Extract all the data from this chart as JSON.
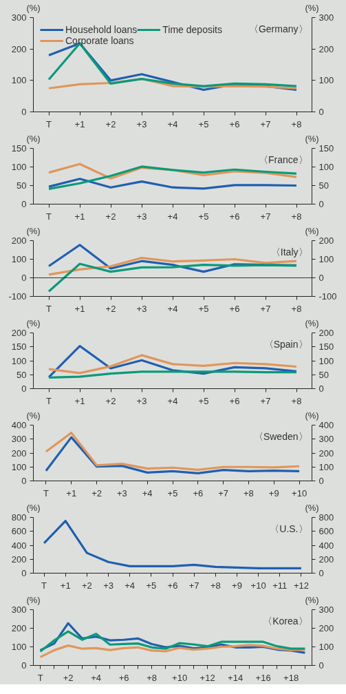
{
  "chart_data": [
    {
      "type": "line",
      "legend": "top left",
      "annotations": [
        "〈Germany〉"
      ],
      "ylabel": "(%)",
      "y2label": "(%)",
      "categories": [
        "T",
        "+1",
        "+2",
        "+3",
        "+4",
        "+5",
        "+6",
        "+7",
        "+8"
      ],
      "ylim": [
        0,
        300
      ],
      "yticks": [
        0,
        100,
        200,
        300
      ],
      "y2lim": [
        0,
        300
      ],
      "y2ticks": [
        0,
        100,
        200,
        300
      ],
      "series": [
        {
          "name": "Household loans",
          "color": "#1f5fb0",
          "values": [
            180,
            218,
            100,
            120,
            95,
            70,
            88,
            82,
            70
          ]
        },
        {
          "name": "Corporate loans",
          "color": "#e0965a",
          "values": [
            75,
            88,
            92,
            105,
            82,
            80,
            82,
            80,
            75
          ]
        },
        {
          "name": "Time deposits",
          "color": "#0a9a7a",
          "values": [
            103,
            218,
            90,
            105,
            90,
            82,
            90,
            88,
            82
          ]
        }
      ]
    },
    {
      "type": "line",
      "annotations": [
        "〈France〉"
      ],
      "ylabel": "(%)",
      "y2label": "(%)",
      "categories": [
        "T",
        "+1",
        "+2",
        "+3",
        "+4",
        "+5",
        "+6",
        "+7",
        "+8"
      ],
      "ylim": [
        0,
        150
      ],
      "yticks": [
        0,
        50,
        100,
        150
      ],
      "y2lim": [
        0,
        150
      ],
      "y2ticks": [
        0,
        50,
        100,
        150
      ],
      "series": [
        {
          "color": "#1f5fb0",
          "values": [
            47,
            68,
            45,
            61,
            45,
            42,
            51,
            51,
            50
          ]
        },
        {
          "color": "#e0965a",
          "values": [
            85,
            108,
            69,
            98,
            92,
            78,
            88,
            84,
            73
          ]
        },
        {
          "color": "#0a9a7a",
          "values": [
            41,
            56,
            76,
            101,
            92,
            85,
            93,
            87,
            82
          ]
        }
      ]
    },
    {
      "type": "line",
      "annotations": [
        "〈Italy〉"
      ],
      "ylabel": "(%)",
      "y2label": "(%)",
      "categories": [
        "T",
        "+1",
        "+2",
        "+3",
        "+4",
        "+5",
        "+6",
        "+7",
        "+8"
      ],
      "ylim": [
        -100,
        200
      ],
      "yticks": [
        -100,
        0,
        100,
        200
      ],
      "y2lim": [
        -100,
        200
      ],
      "y2ticks": [
        -100,
        0,
        100,
        200
      ],
      "ref_lines": [
        {
          "axis": "y",
          "value": 0,
          "color": "#333333"
        }
      ],
      "series": [
        {
          "color": "#1f5fb0",
          "values": [
            63,
            177,
            50,
            90,
            70,
            33,
            73,
            70,
            67
          ]
        },
        {
          "color": "#e0965a",
          "values": [
            17,
            45,
            62,
            107,
            88,
            93,
            100,
            80,
            90
          ]
        },
        {
          "color": "#0a9a7a",
          "values": [
            -73,
            75,
            33,
            56,
            57,
            70,
            65,
            68,
            65
          ]
        }
      ]
    },
    {
      "type": "line",
      "annotations": [
        "〈Spain〉"
      ],
      "ylabel": "(%)",
      "y2label": "(%)",
      "categories": [
        "T",
        "+1",
        "+2",
        "+3",
        "+4",
        "+5",
        "+6",
        "+7",
        "+8"
      ],
      "ylim": [
        0,
        200
      ],
      "yticks": [
        0,
        50,
        100,
        150,
        200
      ],
      "y2lim": [
        0,
        200
      ],
      "y2ticks": [
        0,
        50,
        100,
        150,
        200
      ],
      "series": [
        {
          "color": "#1f5fb0",
          "values": [
            41,
            153,
            73,
            102,
            66,
            54,
            77,
            73,
            62
          ]
        },
        {
          "color": "#e0965a",
          "values": [
            70,
            56,
            80,
            120,
            88,
            82,
            92,
            88,
            79
          ]
        },
        {
          "color": "#0a9a7a",
          "values": [
            40,
            43,
            54,
            61,
            61,
            61,
            61,
            59,
            59
          ]
        }
      ]
    },
    {
      "type": "line",
      "annotations": [
        "〈Sweden〉"
      ],
      "ylabel": "(%)",
      "y2label": "(%)",
      "categories": [
        "T",
        "+1",
        "+2",
        "+3",
        "+4",
        "+5",
        "+6",
        "+7",
        "+8",
        "+9",
        "+10"
      ],
      "ylim": [
        0,
        400
      ],
      "yticks": [
        0,
        100,
        200,
        300,
        400
      ],
      "y2lim": [
        0,
        400
      ],
      "y2ticks": [
        0,
        100,
        200,
        300,
        400
      ],
      "series": [
        {
          "color": "#1f5fb0",
          "values": [
            73,
            313,
            103,
            108,
            60,
            70,
            55,
            78,
            70,
            73,
            70
          ]
        },
        {
          "color": "#e0965a",
          "values": [
            210,
            345,
            112,
            123,
            88,
            95,
            80,
            100,
            100,
            97,
            105
          ]
        }
      ]
    },
    {
      "type": "line",
      "annotations": [
        "〈U.S.〉"
      ],
      "ylabel": "(%)",
      "y2label": "(%)",
      "categories": [
        "T",
        "+1",
        "+2",
        "+3",
        "+4",
        "+5",
        "+6",
        "+7",
        "+8",
        "+9",
        "+10",
        "+11",
        "+12"
      ],
      "ylim": [
        0,
        800
      ],
      "yticks": [
        0,
        200,
        400,
        600,
        800
      ],
      "y2lim": [
        0,
        800
      ],
      "y2ticks": [
        0,
        200,
        400,
        600,
        800
      ],
      "series": [
        {
          "color": "#1f5fb0",
          "values": [
            430,
            750,
            290,
            160,
            100,
            100,
            100,
            120,
            90,
            80,
            70,
            70,
            70
          ]
        }
      ]
    },
    {
      "type": "line",
      "annotations": [
        "〈Korea〉"
      ],
      "ylabel": "(%)",
      "y2label": "(%)",
      "categories": [
        "T",
        null,
        "+2",
        null,
        "+4",
        null,
        "+6",
        null,
        "+8",
        null,
        "+10",
        null,
        "+12",
        null,
        "+14",
        null,
        "+16",
        null,
        "+18",
        null
      ],
      "ylim": [
        0,
        300
      ],
      "yticks": [
        0,
        100,
        200,
        300
      ],
      "y2lim": [
        0,
        300
      ],
      "y2ticks": [
        0,
        100,
        200,
        300
      ],
      "series": [
        {
          "color": "#1f5fb0",
          "values": [
            82,
            118,
            227,
            145,
            155,
            135,
            138,
            145,
            115,
            98,
            105,
            92,
            97,
            113,
            97,
            97,
            100,
            85,
            80,
            68
          ]
        },
        {
          "color": "#e0965a",
          "values": [
            45,
            82,
            107,
            90,
            93,
            83,
            93,
            97,
            80,
            76,
            95,
            85,
            90,
            100,
            103,
            110,
            105,
            90,
            83,
            85
          ]
        },
        {
          "color": "#0a9a7a",
          "values": [
            75,
            135,
            183,
            138,
            170,
            112,
            115,
            118,
            97,
            90,
            120,
            113,
            103,
            127,
            127,
            127,
            127,
            103,
            90,
            90
          ]
        }
      ]
    }
  ]
}
